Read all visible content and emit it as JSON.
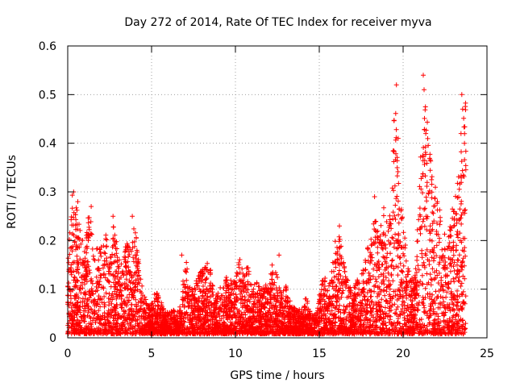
{
  "chart_data": {
    "type": "scatter",
    "title": "Day 272 of 2014, Rate Of TEC Index for receiver myva",
    "xlabel": "GPS time / hours",
    "ylabel": "ROTI / TECUs",
    "xlim": [
      0,
      25
    ],
    "ylim": [
      0,
      0.6
    ],
    "x_ticks": [
      "0",
      "5",
      "10",
      "15",
      "20",
      "25"
    ],
    "y_ticks": [
      "0",
      "0.1",
      "0.2",
      "0.3",
      "0.4",
      "0.5",
      "0.6"
    ],
    "grid": true,
    "marker": "+",
    "color": "#ff0000",
    "envelope": {
      "x": [
        0.0,
        0.25,
        0.5,
        0.75,
        1.0,
        1.25,
        1.5,
        1.75,
        2.0,
        2.25,
        2.5,
        2.75,
        3.0,
        3.25,
        3.5,
        3.75,
        4.0,
        4.25,
        4.5,
        4.75,
        5.0,
        5.25,
        5.5,
        5.75,
        6.0,
        6.25,
        6.5,
        6.75,
        7.0,
        7.25,
        7.5,
        7.75,
        8.0,
        8.25,
        8.5,
        8.75,
        9.0,
        9.25,
        9.5,
        9.75,
        10.0,
        10.25,
        10.5,
        10.75,
        11.0,
        11.25,
        11.5,
        11.75,
        12.0,
        12.25,
        12.5,
        12.75,
        13.0,
        13.25,
        13.5,
        13.75,
        14.0,
        14.25,
        14.5,
        14.75,
        15.0,
        15.25,
        15.5,
        15.75,
        16.0,
        16.25,
        16.5,
        16.75,
        17.0,
        17.25,
        17.5,
        17.75,
        18.0,
        18.25,
        18.5,
        18.75,
        19.0,
        19.25,
        19.5,
        19.75,
        20.0,
        20.25,
        20.5,
        20.75,
        21.0,
        21.25,
        21.5,
        21.75,
        22.0,
        22.25,
        22.5,
        22.75,
        23.0,
        23.25,
        23.5,
        23.75
      ],
      "max": [
        0.15,
        0.3,
        0.28,
        0.23,
        0.2,
        0.27,
        0.22,
        0.19,
        0.19,
        0.22,
        0.18,
        0.25,
        0.17,
        0.15,
        0.2,
        0.19,
        0.25,
        0.15,
        0.1,
        0.07,
        0.07,
        0.1,
        0.08,
        0.06,
        0.05,
        0.06,
        0.05,
        0.07,
        0.17,
        0.12,
        0.1,
        0.13,
        0.14,
        0.16,
        0.15,
        0.08,
        0.1,
        0.11,
        0.13,
        0.12,
        0.12,
        0.17,
        0.14,
        0.15,
        0.1,
        0.12,
        0.1,
        0.11,
        0.11,
        0.17,
        0.13,
        0.09,
        0.11,
        0.08,
        0.07,
        0.06,
        0.06,
        0.09,
        0.05,
        0.05,
        0.1,
        0.13,
        0.12,
        0.14,
        0.23,
        0.2,
        0.16,
        0.12,
        0.1,
        0.12,
        0.14,
        0.16,
        0.21,
        0.24,
        0.26,
        0.29,
        0.24,
        0.27,
        0.52,
        0.3,
        0.25,
        0.15,
        0.12,
        0.15,
        0.35,
        0.54,
        0.42,
        0.34,
        0.3,
        0.27,
        0.21,
        0.22,
        0.28,
        0.32,
        0.42,
        0.5
      ]
    },
    "peaks": [
      {
        "x": 0.35,
        "y": 0.3
      },
      {
        "x": 0.6,
        "y": 0.28
      },
      {
        "x": 1.4,
        "y": 0.27
      },
      {
        "x": 2.7,
        "y": 0.25
      },
      {
        "x": 3.85,
        "y": 0.25
      },
      {
        "x": 6.8,
        "y": 0.17
      },
      {
        "x": 12.6,
        "y": 0.17
      },
      {
        "x": 16.2,
        "y": 0.23
      },
      {
        "x": 18.3,
        "y": 0.29
      },
      {
        "x": 19.6,
        "y": 0.52
      },
      {
        "x": 19.7,
        "y": 0.41
      },
      {
        "x": 21.2,
        "y": 0.54
      },
      {
        "x": 21.25,
        "y": 0.51
      },
      {
        "x": 21.35,
        "y": 0.42
      },
      {
        "x": 23.5,
        "y": 0.5
      },
      {
        "x": 23.45,
        "y": 0.42
      },
      {
        "x": 23.55,
        "y": 0.47
      }
    ]
  }
}
